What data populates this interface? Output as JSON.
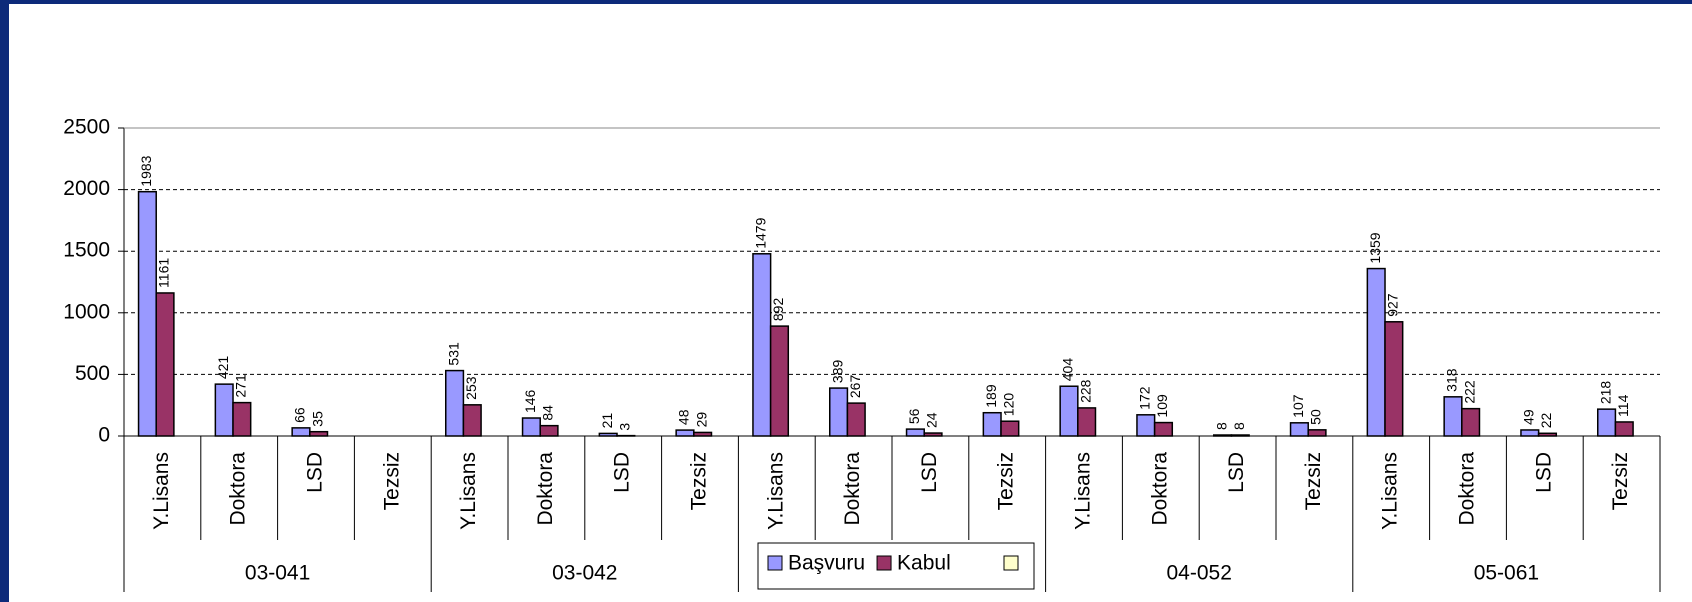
{
  "chart_data": {
    "type": "bar",
    "categories": [
      "Y.Lisans",
      "Doktora",
      "LSD",
      "Tezsiz",
      "Y.Lisans",
      "Doktora",
      "LSD",
      "Tezsiz",
      "Y.Lisans",
      "Doktora",
      "LSD",
      "Tezsiz",
      "Y.Lisans",
      "Doktora",
      "LSD",
      "Tezsiz",
      "Y.Lisans",
      "Doktora",
      "LSD",
      "Tezsiz"
    ],
    "groups": [
      "03-041",
      "03-042",
      null,
      "04-052",
      "05-061"
    ],
    "series": [
      {
        "name": "Başvuru",
        "color": "#9999ff",
        "values": [
          1983,
          421,
          66,
          null,
          531,
          146,
          21,
          48,
          1479,
          389,
          56,
          189,
          404,
          172,
          8,
          107,
          1359,
          318,
          49,
          218
        ]
      },
      {
        "name": "Kabul",
        "color": "#993366",
        "values": [
          1161,
          271,
          35,
          null,
          253,
          84,
          3,
          29,
          892,
          267,
          24,
          120,
          228,
          109,
          8,
          50,
          927,
          222,
          22,
          114
        ]
      }
    ],
    "ylim": [
      0,
      2500
    ],
    "yticks": [
      0,
      500,
      1000,
      1500,
      2000,
      2500
    ],
    "grid": true
  }
}
